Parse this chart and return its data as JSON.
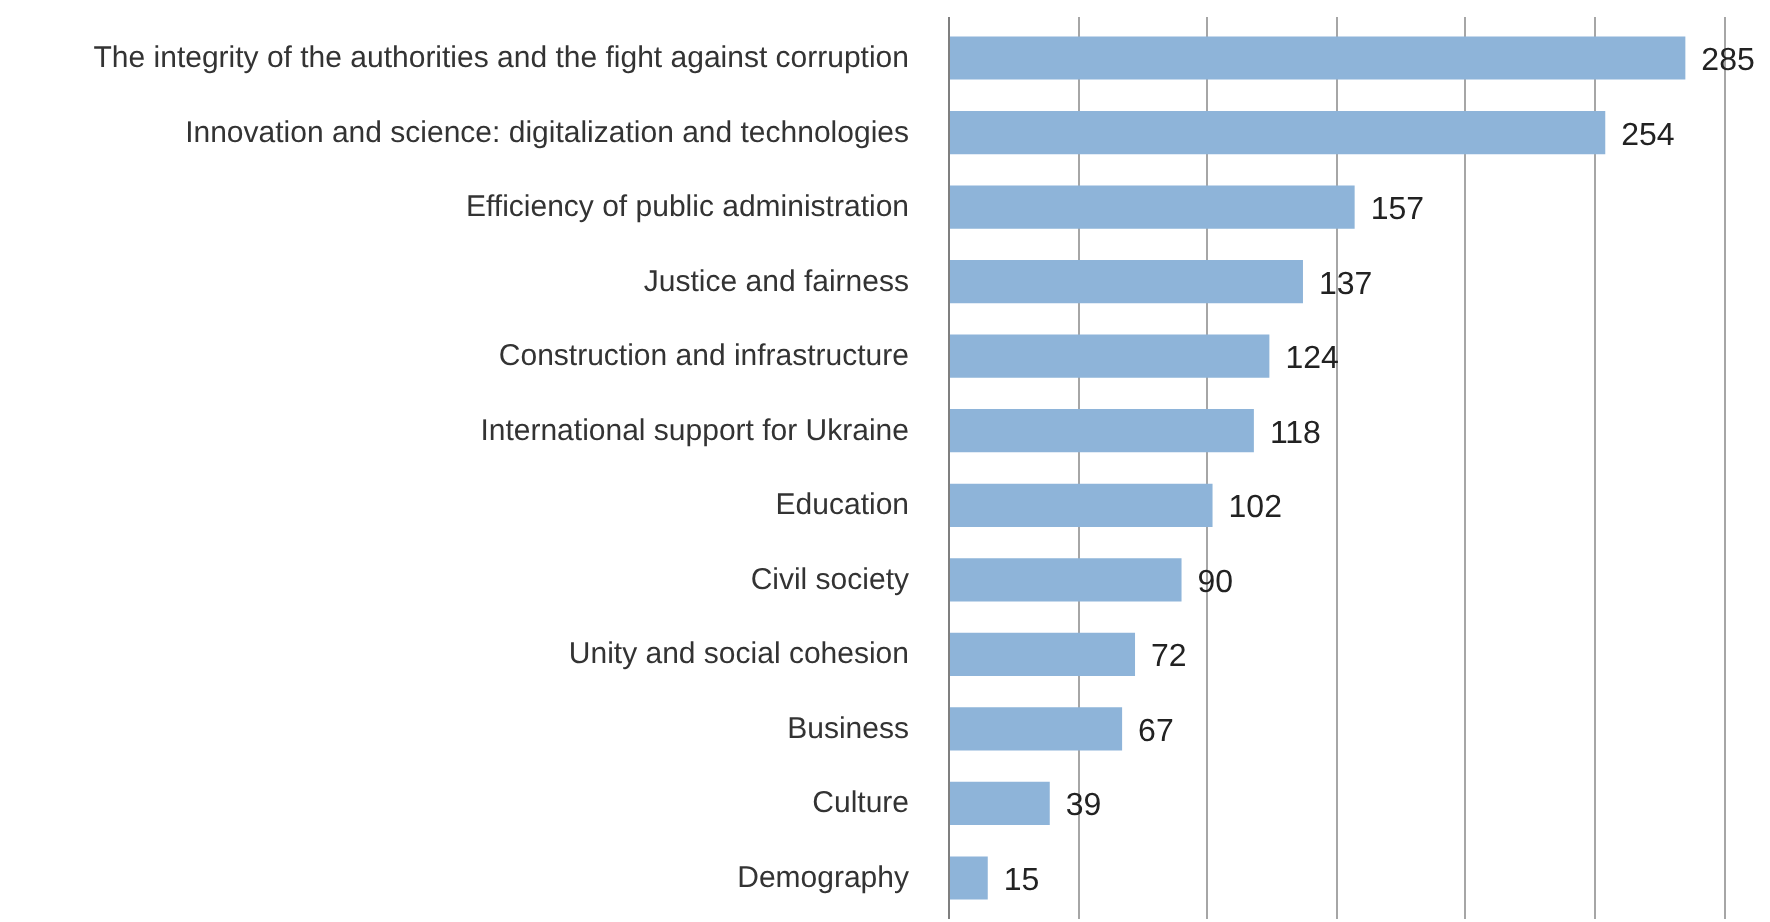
{
  "chart_data": {
    "type": "bar",
    "orientation": "horizontal",
    "categories": [
      "The integrity of the authorities and the fight against corruption",
      "Innovation and science: digitalization and technologies",
      "Efficiency of public administration",
      "Justice and fairness",
      "Construction and infrastructure",
      "International support for Ukraine",
      "Education",
      "Civil society",
      "Unity and social cohesion",
      "Business",
      "Culture",
      "Demography"
    ],
    "values": [
      285,
      254,
      157,
      137,
      124,
      118,
      102,
      90,
      72,
      67,
      39,
      15
    ],
    "color": "#8eb4d9",
    "grid": "x",
    "tick_labels": "y",
    "data_labels": true
  }
}
